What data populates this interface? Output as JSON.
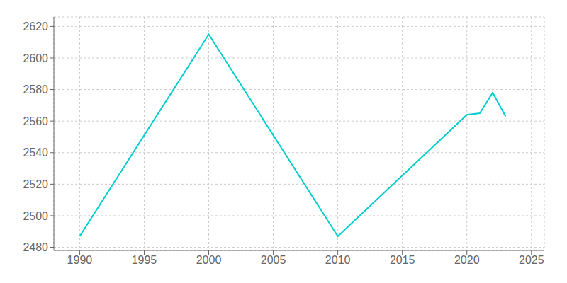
{
  "chart_data": {
    "type": "line",
    "x": [
      1990,
      2000,
      2010,
      2020,
      2021,
      2022,
      2023
    ],
    "values": [
      2487,
      2615,
      2487,
      2564,
      2565,
      2578,
      2563
    ],
    "color": "#00CDCD",
    "xlim": [
      1988,
      2026
    ],
    "ylim": [
      2478,
      2626
    ],
    "xticks": [
      1990,
      1995,
      2000,
      2005,
      2010,
      2015,
      2020,
      2025
    ],
    "yticks": [
      2480,
      2500,
      2520,
      2540,
      2560,
      2580,
      2600,
      2620
    ],
    "grid": true
  }
}
